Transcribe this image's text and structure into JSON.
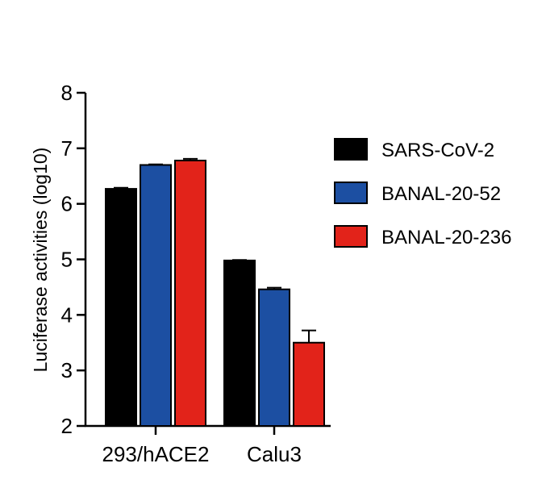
{
  "chart_data": {
    "type": "bar",
    "title": "",
    "xlabel": "",
    "ylabel": "Luciferase activities (log10)",
    "ylim": [
      2,
      8
    ],
    "yticks": [
      "2",
      "3",
      "4",
      "5",
      "6",
      "7",
      "8"
    ],
    "categories": [
      "293/hACE2",
      "Calu3"
    ],
    "series": [
      {
        "name": "SARS-CoV-2",
        "color": "#000000",
        "values": [
          6.27,
          4.98
        ],
        "errors": [
          0.02,
          0.01
        ]
      },
      {
        "name": "BANAL-20-52",
        "color": "#1c4fa2",
        "values": [
          6.7,
          4.46
        ],
        "errors": [
          0.01,
          0.03
        ]
      },
      {
        "name": "BANAL-20-236",
        "color": "#e2231a",
        "values": [
          6.78,
          3.5
        ],
        "errors": [
          0.03,
          0.22
        ]
      }
    ],
    "grid": false,
    "legend_position": "right"
  }
}
